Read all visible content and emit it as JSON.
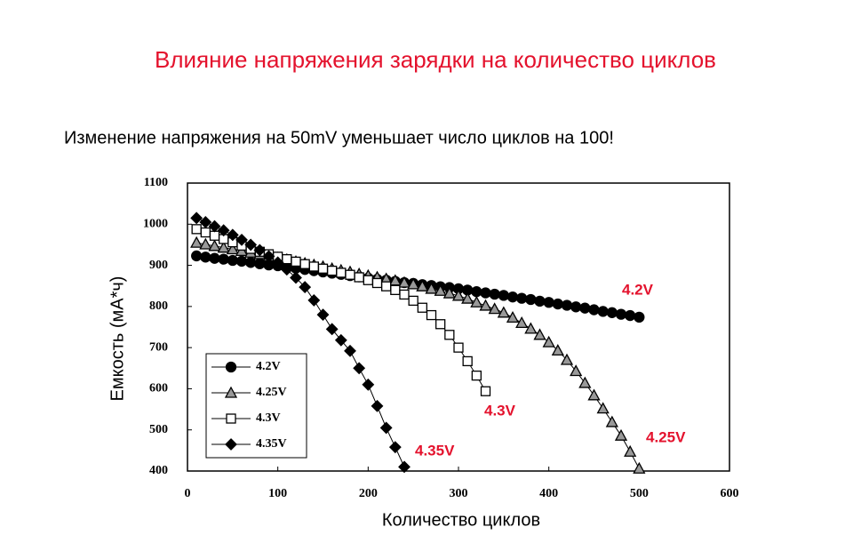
{
  "chart_data": {
    "type": "line",
    "title": "Влияние напряжения зарядки на количество циклов",
    "subtitle": "Изменение напряжения на 50mV уменьшает число циклов на 100!",
    "x_label": "Количество циклов",
    "y_label": "Емкость (мА*ч)",
    "xlim": [
      0,
      600
    ],
    "xticks": [
      0,
      100,
      200,
      300,
      400,
      500,
      600
    ],
    "ylim": [
      400,
      1100
    ],
    "yticks": [
      400,
      500,
      600,
      700,
      800,
      900,
      1000,
      1100
    ],
    "legend": "bottom-left",
    "annotations": [
      "4.2V",
      "4.25V",
      "4.3V",
      "4.35V"
    ],
    "series": [
      {
        "name": "4.2V",
        "marker": "circle",
        "color": "#000000",
        "x": [
          10,
          20,
          30,
          40,
          50,
          60,
          70,
          80,
          90,
          100,
          110,
          120,
          130,
          140,
          150,
          160,
          170,
          180,
          190,
          200,
          210,
          220,
          230,
          240,
          250,
          260,
          270,
          280,
          290,
          300,
          310,
          320,
          330,
          340,
          350,
          360,
          370,
          380,
          390,
          400,
          410,
          420,
          430,
          440,
          450,
          460,
          470,
          480,
          490,
          500
        ],
        "values": [
          923,
          920,
          917,
          915,
          912,
          910,
          907,
          904,
          901,
          899,
          896,
          893,
          890,
          887,
          884,
          881,
          878,
          875,
          872,
          869,
          866,
          864,
          861,
          858,
          856,
          853,
          851,
          848,
          846,
          843,
          840,
          836,
          833,
          830,
          827,
          823,
          820,
          817,
          813,
          810,
          806,
          803,
          799,
          796,
          792,
          788,
          785,
          781,
          778,
          774
        ]
      },
      {
        "name": "4.25V",
        "marker": "triangle",
        "color": "#999999",
        "x": [
          10,
          20,
          30,
          40,
          50,
          60,
          70,
          80,
          90,
          100,
          110,
          120,
          130,
          140,
          150,
          160,
          170,
          180,
          190,
          200,
          210,
          220,
          230,
          240,
          250,
          260,
          270,
          280,
          290,
          300,
          310,
          320,
          330,
          340,
          350,
          360,
          370,
          380,
          390,
          400,
          410,
          420,
          430,
          440,
          450,
          460,
          470,
          480,
          490,
          500
        ],
        "values": [
          955,
          951,
          947,
          943,
          939,
          935,
          931,
          927,
          922,
          918,
          914,
          909,
          905,
          901,
          897,
          892,
          888,
          884,
          879,
          875,
          871,
          867,
          863,
          858,
          854,
          849,
          843,
          838,
          832,
          826,
          819,
          810,
          802,
          794,
          785,
          773,
          760,
          746,
          731,
          713,
          693,
          670,
          643,
          614,
          584,
          552,
          519,
          486,
          447,
          406
        ]
      },
      {
        "name": "4.3V",
        "marker": "square",
        "color": "#ffffff",
        "x": [
          10,
          20,
          30,
          40,
          50,
          60,
          70,
          80,
          90,
          100,
          110,
          120,
          130,
          140,
          150,
          160,
          170,
          180,
          190,
          200,
          210,
          220,
          230,
          240,
          250,
          260,
          270,
          280,
          290,
          300,
          310,
          320,
          330
        ],
        "values": [
          988,
          980,
          972,
          964,
          956,
          948,
          940,
          933,
          927,
          921,
          915,
          909,
          903,
          897,
          892,
          887,
          882,
          877,
          871,
          864,
          857,
          849,
          840,
          829,
          814,
          797,
          779,
          757,
          731,
          700,
          667,
          632,
          594
        ]
      },
      {
        "name": "4.35V",
        "marker": "diamond",
        "color": "#000000",
        "x": [
          10,
          20,
          30,
          40,
          50,
          60,
          70,
          80,
          90,
          100,
          110,
          120,
          130,
          140,
          150,
          160,
          170,
          180,
          190,
          200,
          210,
          220,
          230,
          240
        ],
        "values": [
          1015,
          1005,
          995,
          985,
          974,
          962,
          950,
          937,
          922,
          907,
          890,
          870,
          847,
          815,
          780,
          745,
          718,
          692,
          650,
          610,
          558,
          505,
          458,
          410
        ]
      }
    ]
  }
}
